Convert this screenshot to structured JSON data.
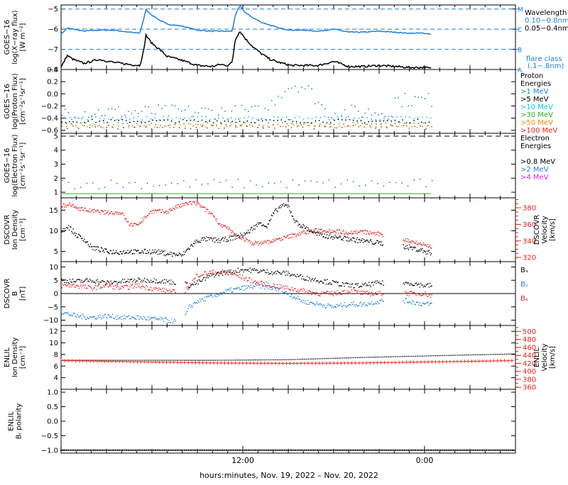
{
  "colors": {
    "black": "#000000",
    "blue": "#1f7fdc",
    "cyan": "#00c8e0",
    "green": "#22b022",
    "orange": "#f08a00",
    "red": "#e8221e",
    "magenta": "#e020e0"
  },
  "x_axis": {
    "label": "hours:minutes, Nov. 19, 2022 – Nov. 20, 2022",
    "ticks": [
      {
        "x": 12,
        "label": "12:00"
      },
      {
        "x": 24,
        "label": "0:00"
      }
    ],
    "range_hours": [
      0,
      30
    ]
  },
  "chart_data": [
    {
      "id": "xray",
      "type": "line",
      "ylabel_lines": [
        "GOES−16",
        "log(X−ray flux)",
        "[W m⁻²]"
      ],
      "ylim": [
        -8,
        -4.8
      ],
      "yticks": [
        -8,
        -7,
        -6,
        -5
      ],
      "flare_class_lines": [
        {
          "label": "M",
          "y": -5
        },
        {
          "label": "C",
          "y": -6
        },
        {
          "label": "B",
          "y": -7
        },
        {
          "label": "A",
          "y": -8
        }
      ],
      "legend": [
        "Wavelength",
        "0.10−0.8nm",
        "0.05−0.4nm",
        "flare class",
        "(.1−.8nm)"
      ],
      "series": [
        {
          "name": "0.10−0.8nm",
          "x": [
            0,
            0.4,
            0.8,
            1.5,
            2.5,
            3.5,
            4.5,
            5.2,
            5.45,
            5.6,
            6.0,
            6.5,
            7.0,
            8.0,
            9.0,
            10.0,
            10.5,
            11.0,
            11.3,
            11.5,
            11.8,
            12.2,
            12.7,
            13.2,
            13.8,
            14.4,
            15.2,
            16,
            17,
            18,
            19,
            20,
            21,
            22,
            23,
            24,
            24.5
          ],
          "y": [
            -6.25,
            -5.95,
            -6.0,
            -6.1,
            -6.05,
            -6.05,
            -6.15,
            -6.2,
            -5.5,
            -5.05,
            -5.3,
            -5.55,
            -5.75,
            -5.85,
            -6.05,
            -6.1,
            -6.1,
            -6.1,
            -6.1,
            -5.3,
            -4.85,
            -5.2,
            -5.45,
            -5.65,
            -5.8,
            -5.95,
            -6.05,
            -6.05,
            -6.1,
            -6.0,
            -6.15,
            -6.15,
            -6.1,
            -6.15,
            -6.2,
            -6.2,
            -6.25
          ]
        },
        {
          "name": "0.05−0.4nm",
          "x": [
            0,
            0.4,
            0.8,
            1.5,
            2.5,
            3.5,
            4.5,
            5.2,
            5.45,
            5.6,
            6.0,
            6.5,
            7.0,
            8.0,
            9.0,
            10.0,
            10.5,
            11.0,
            11.3,
            11.5,
            11.8,
            12.2,
            12.7,
            13.2,
            13.8,
            14.4,
            15.2,
            16,
            17,
            18,
            19,
            20,
            21,
            22,
            23,
            24,
            24.5
          ],
          "y": [
            -7.9,
            -7.3,
            -7.5,
            -7.7,
            -7.5,
            -7.65,
            -7.75,
            -7.8,
            -7.1,
            -6.3,
            -6.7,
            -7.0,
            -7.35,
            -7.55,
            -7.8,
            -7.85,
            -7.75,
            -7.8,
            -7.65,
            -6.5,
            -6.1,
            -6.5,
            -6.9,
            -7.2,
            -7.5,
            -7.65,
            -7.8,
            -7.8,
            -7.8,
            -7.6,
            -7.85,
            -7.85,
            -7.8,
            -7.85,
            -7.9,
            -7.9,
            -7.95
          ]
        }
      ]
    },
    {
      "id": "proton",
      "type": "scatter",
      "ylabel_lines": [
        "GOES−16",
        "log(Proton Flux)",
        "[cm⁻²s⁻¹sr⁻¹]"
      ],
      "ylim": [
        -0.65,
        0.4
      ],
      "yticks": [
        -0.6,
        -0.4,
        -0.2,
        0.0,
        0.2,
        0.4
      ],
      "ytick_labels": [
        "−0.6",
        "−0.4",
        "−0.2",
        "0.0",
        "0.2",
        "0.4"
      ],
      "legend": [
        "Proton",
        "Energies",
        ">1 MeV",
        ">5 MeV",
        ">10 MeV",
        ">30 MeV",
        ">50 MeV",
        ">100 MeV"
      ],
      "series": [
        {
          "name": ">1 MeV",
          "level": -0.3
        },
        {
          "name": ">5 MeV",
          "level": -0.45
        },
        {
          "name": ">10 MeV",
          "level": -0.4
        },
        {
          "name": ">30 MeV",
          "level": -0.5
        },
        {
          "name": ">50 MeV",
          "level": -0.53
        },
        {
          "name": ">100 MeV",
          "level": -0.55
        }
      ]
    },
    {
      "id": "electron",
      "type": "scatter",
      "ylabel_lines": [
        "GOES−16",
        "log(Electron Flux)",
        "[cm⁻²s⁻¹sr⁻¹]"
      ],
      "ylim": [
        0.6,
        5.2
      ],
      "yticks": [
        1,
        2,
        3,
        4,
        5
      ],
      "threshold": 5.0,
      "legend": [
        "Electron",
        "Energies",
        ">0.8 MeV",
        ">2 MeV",
        ">4 MeV"
      ],
      "series": [
        {
          "name": ">0.8 MeV",
          "level": 0.9
        },
        {
          "name": ">2 MeV",
          "level": 1.6
        },
        {
          "name": ">4 MeV",
          "level": 0.88
        }
      ]
    },
    {
      "id": "dscovr_density",
      "type": "scatter",
      "ylabel_lines": [
        "DSCOVR",
        "Ion Density",
        "[cm⁻³]"
      ],
      "ylim": [
        2.5,
        18
      ],
      "yticks": [
        5,
        10,
        15
      ],
      "right_ylabel_lines": [
        "DSCOVR",
        "Velocity",
        "[km/s]"
      ],
      "right_ylim": [
        315,
        392
      ],
      "right_yticks": [
        320,
        340,
        360,
        380
      ],
      "series": [
        {
          "name": "Ion Density",
          "x": [
            0,
            0.5,
            1,
            1.5,
            2,
            3,
            4,
            4.5,
            5,
            6,
            7,
            8,
            8.5,
            9,
            9.5,
            10,
            10.5,
            11,
            11.5,
            12,
            12.3,
            12.8,
            13.2,
            13.6,
            14,
            14.5,
            15,
            15.5,
            16,
            17,
            18,
            19,
            20,
            21,
            22,
            23,
            23.5,
            24,
            24.5
          ],
          "y": [
            10,
            11,
            9,
            8,
            6,
            5,
            4.8,
            5,
            4.8,
            5,
            4.5,
            4,
            6,
            7.5,
            8,
            7.8,
            7.6,
            8,
            8.5,
            9,
            9.5,
            11,
            12,
            11,
            14,
            16,
            16,
            12,
            11,
            9,
            8.5,
            8,
            7.5,
            7,
            6.5,
            6,
            5.5,
            5,
            4.5
          ]
        },
        {
          "name": "Velocity",
          "x": [
            0,
            0.5,
            1,
            2,
            3,
            4,
            4.5,
            5,
            6,
            7,
            7.5,
            8,
            8.5,
            9,
            9.5,
            10,
            10.5,
            11,
            11.5,
            12,
            12.5,
            13,
            14,
            15,
            16,
            17,
            18,
            19,
            20,
            21,
            22,
            23,
            23.5,
            24,
            24.5
          ],
          "y": [
            382,
            384,
            380,
            376,
            374,
            374,
            360,
            359,
            376,
            375,
            380,
            383,
            386,
            385,
            378,
            372,
            360,
            355,
            347,
            343,
            338,
            337,
            340,
            345,
            350,
            353,
            352,
            350,
            351,
            348,
            345,
            340,
            338,
            335,
            333
          ]
        }
      ]
    },
    {
      "id": "dscovr_b",
      "type": "scatter",
      "ylabel_lines": [
        "DSCOVR",
        "B",
        "[nT]"
      ],
      "ylim": [
        -12,
        12
      ],
      "yticks": [
        -10,
        -5,
        0,
        5,
        10
      ],
      "ytick_labels": [
        "−10",
        "−5",
        "0",
        "5",
        "10"
      ],
      "legend": [
        "Bₓ",
        "Bᵧ",
        "Bₔ"
      ],
      "series": [
        {
          "name": "Bx",
          "x": [
            0,
            1,
            2,
            3,
            4,
            5,
            6,
            7,
            8,
            8.5,
            9,
            10,
            11,
            12,
            13,
            14,
            15,
            16,
            17,
            18,
            19,
            20,
            21,
            22,
            23,
            24,
            24.5
          ],
          "y": [
            5,
            4.5,
            5,
            4,
            4.5,
            5,
            5,
            4.5,
            4,
            3,
            4,
            7,
            8,
            9,
            8.5,
            8,
            7.5,
            6,
            5,
            4,
            3,
            3,
            4,
            3.5,
            4,
            3,
            3
          ]
        },
        {
          "name": "By",
          "x": [
            0,
            1,
            2,
            3,
            4,
            5,
            6,
            7,
            8,
            8.5,
            9,
            10,
            11,
            12,
            13,
            14,
            15,
            16,
            17,
            18,
            19,
            20,
            21,
            22,
            23,
            24,
            24.5
          ],
          "y": [
            -7,
            -8.5,
            -9,
            -8.5,
            -9,
            -9,
            -9.5,
            -10,
            -11,
            -5,
            -3,
            -1,
            1,
            2,
            3,
            2,
            0,
            -3,
            -4,
            -5,
            -4,
            -4,
            -3,
            -2,
            -3,
            -4,
            -4
          ]
        },
        {
          "name": "Bz",
          "x": [
            0,
            1,
            2,
            3,
            4,
            5,
            6,
            7,
            8,
            8.5,
            9,
            10,
            11,
            12,
            13,
            14,
            15,
            16,
            17,
            18,
            19,
            20,
            21,
            22,
            23,
            24,
            24.5
          ],
          "y": [
            3,
            3,
            2,
            3,
            2,
            3,
            2,
            1,
            0,
            3,
            7,
            8,
            8,
            6,
            4,
            3,
            2,
            1,
            0,
            0,
            1,
            0,
            0,
            1,
            0,
            0,
            -1
          ]
        }
      ]
    },
    {
      "id": "enlil_density",
      "type": "line",
      "ylabel_lines": [
        "ENLIL",
        "Ion Density",
        "[cm⁻³]"
      ],
      "ylim": [
        2,
        13
      ],
      "yticks": [
        4,
        6,
        8,
        10,
        12
      ],
      "right_ylabel_lines": [
        "ENLIL",
        "Velocity",
        "[km/s]"
      ],
      "right_ylim": [
        355,
        515
      ],
      "right_yticks": [
        360,
        380,
        400,
        420,
        440,
        460,
        480,
        500
      ],
      "series": [
        {
          "name": "Ion Density",
          "x": [
            0,
            5,
            10,
            15,
            20,
            25,
            30
          ],
          "y": [
            7.0,
            7.0,
            7.0,
            7.1,
            7.5,
            7.8,
            8.1
          ]
        },
        {
          "name": "Velocity",
          "x": [
            0,
            5,
            10,
            15,
            20,
            25,
            30
          ],
          "y": [
            427,
            424,
            421,
            420,
            421,
            424,
            427
          ]
        }
      ]
    },
    {
      "id": "enlil_polarity",
      "type": "line",
      "ylabel_lines": [
        "ENLIL",
        "Bᵣ polarity"
      ],
      "ylim": [
        -1.1,
        1.1
      ],
      "yticks": [
        -1.0,
        -0.5,
        0.0,
        0.5,
        1.0
      ],
      "ytick_labels": [
        "−1.0",
        "−0.5",
        "0.0",
        "0.5",
        "1.0"
      ],
      "series": [
        {
          "name": "Br polarity",
          "x": [
            0,
            30
          ],
          "y": [
            -1.0,
            -1.0
          ]
        }
      ]
    }
  ]
}
